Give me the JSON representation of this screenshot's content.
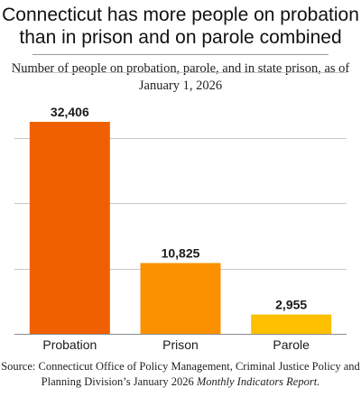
{
  "chart_data": {
    "type": "bar",
    "title": "Connecticut has more people on probation than in prison and on parole combined",
    "subtitle": "Number of people on probation, parole, and in state prison, as of January 1, 2026",
    "categories": [
      "Probation",
      "Prison",
      "Parole"
    ],
    "values": [
      32406,
      10825,
      2955
    ],
    "value_labels": [
      "32,406",
      "10,825",
      "2,955"
    ],
    "colors": [
      "#f06000",
      "#fb9100",
      "#fcc000"
    ],
    "ylim": [
      0,
      40000
    ],
    "yticks": [
      0,
      10000,
      20000,
      30000,
      40000
    ],
    "grid": true,
    "legend": "none",
    "xlabel": "",
    "ylabel": ""
  },
  "source": {
    "prefix": "Source: Connecticut Office of Policy Management, Criminal Justice Policy and Planning Division’s January 2026 ",
    "italic": "Monthly Indicators Report."
  }
}
